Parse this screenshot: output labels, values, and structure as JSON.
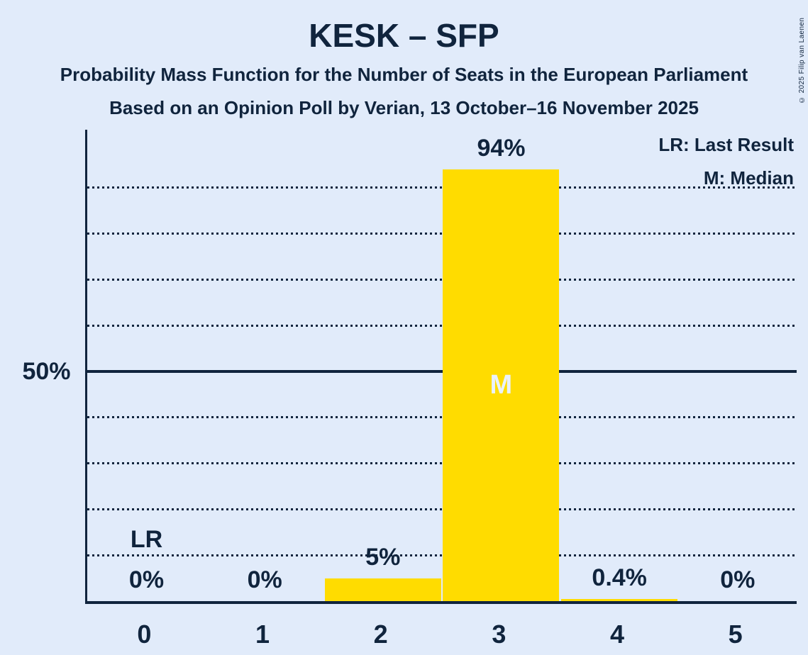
{
  "copyright": "© 2025 Filip van Laenen",
  "colors": {
    "background": "#E1EBFA",
    "text": "#10243D",
    "bar": "#FFDC00",
    "median_label": "#EAF2FD"
  },
  "chart_data": {
    "type": "bar",
    "title": "KESK – SFP",
    "subtitle_line1": "Probability Mass Function for the Number of Seats in the European Parliament",
    "subtitle_line2": "Based on an Opinion Poll by Verian, 13 October–16 November 2025",
    "categories": [
      "0",
      "1",
      "2",
      "3",
      "4",
      "5"
    ],
    "values": [
      0,
      0,
      5,
      94,
      0.4,
      0
    ],
    "value_labels": [
      "0%",
      "0%",
      "5%",
      "94%",
      "0.4%",
      "0%"
    ],
    "xlabel": "",
    "ylabel": "",
    "ylim": [
      0,
      100
    ],
    "grid": true,
    "ytick": {
      "value": 50,
      "label": "50%"
    },
    "gridlines_percent": [
      10,
      20,
      30,
      40,
      60,
      70,
      80,
      90
    ],
    "emphasized_line_percent": 50,
    "legend_position": "top-right",
    "legend": [
      {
        "key": "LR",
        "label": "LR: Last Result"
      },
      {
        "key": "M",
        "label": "M: Median"
      }
    ],
    "annotations": {
      "last_result": {
        "category": "0",
        "text": "LR"
      },
      "median": {
        "category": "3",
        "text": "M"
      }
    }
  }
}
